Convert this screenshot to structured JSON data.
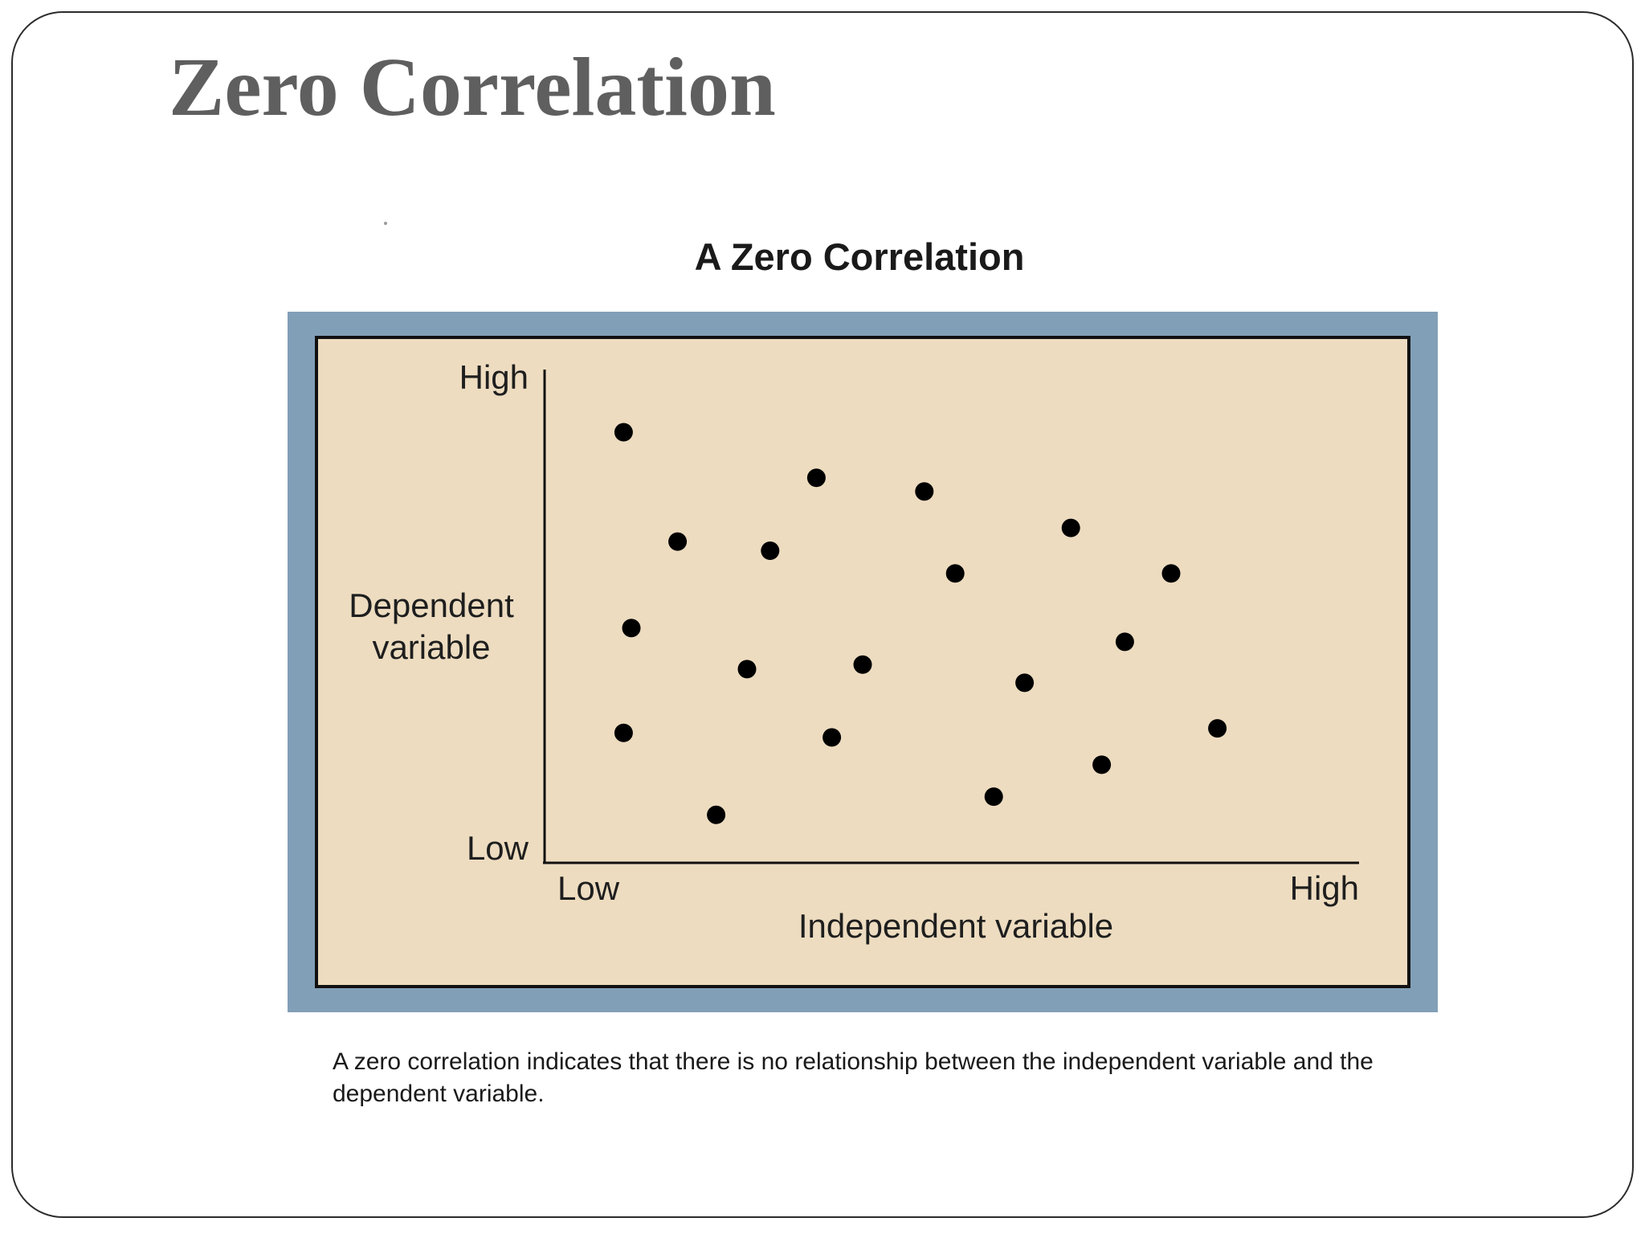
{
  "slide": {
    "title": "Zero Correlation",
    "caption": "A zero correlation indicates that there is no relationship between the independent variable and the dependent variable."
  },
  "colors": {
    "frame": "#829fb8",
    "plot_background": "#eddcc0",
    "points": "#000000",
    "title_gray": "#5f5f5f"
  },
  "chart_data": {
    "type": "scatter",
    "title": "A Zero Correlation",
    "xlabel": "Independent variable",
    "ylabel": "Dependent variable",
    "x_tick_labels": {
      "low": "Low",
      "high": "High"
    },
    "y_tick_labels": {
      "low": "Low",
      "high": "High"
    },
    "xlim": [
      0,
      100
    ],
    "ylim": [
      0,
      100
    ],
    "grid": false,
    "points": [
      {
        "x": 9,
        "y": 91
      },
      {
        "x": 16,
        "y": 67
      },
      {
        "x": 28,
        "y": 65
      },
      {
        "x": 34,
        "y": 81
      },
      {
        "x": 48,
        "y": 78
      },
      {
        "x": 52,
        "y": 60
      },
      {
        "x": 67,
        "y": 70
      },
      {
        "x": 80,
        "y": 60
      },
      {
        "x": 10,
        "y": 48
      },
      {
        "x": 25,
        "y": 39
      },
      {
        "x": 40,
        "y": 40
      },
      {
        "x": 61,
        "y": 36
      },
      {
        "x": 74,
        "y": 45
      },
      {
        "x": 9,
        "y": 25
      },
      {
        "x": 36,
        "y": 24
      },
      {
        "x": 86,
        "y": 26
      },
      {
        "x": 71,
        "y": 18
      },
      {
        "x": 21,
        "y": 7
      },
      {
        "x": 57,
        "y": 11
      }
    ]
  }
}
